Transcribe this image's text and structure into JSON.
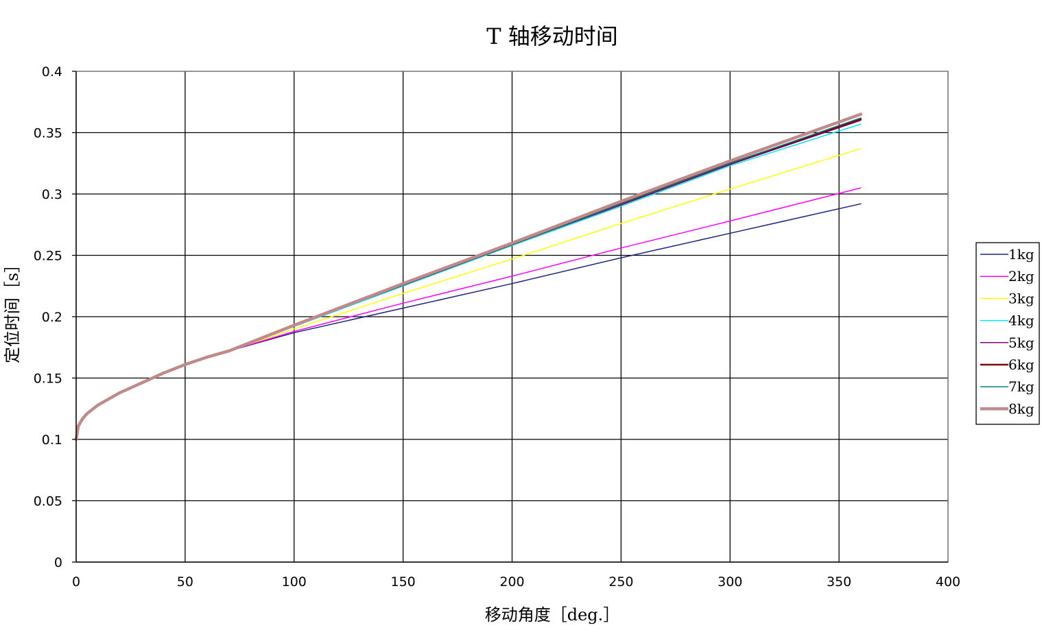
{
  "chart_data": {
    "type": "line",
    "title": "T 轴移动时间",
    "xlabel": "移动角度［deg.］",
    "ylabel": "定位时间［s］",
    "xlim": [
      0,
      400
    ],
    "ylim": [
      0,
      0.4
    ],
    "x_ticks": [
      "0",
      "50",
      "100",
      "150",
      "200",
      "250",
      "300",
      "350",
      "400"
    ],
    "y_ticks": [
      "0",
      "0.05",
      "0.1",
      "0.15",
      "0.2",
      "0.25",
      "0.3",
      "0.35",
      "0.4"
    ],
    "grid": true,
    "legend_position": "right",
    "shared_start": {
      "x": [
        0,
        1,
        3,
        5,
        10,
        15,
        20,
        30,
        40,
        50,
        60,
        70
      ],
      "y": [
        0.1,
        0.111,
        0.117,
        0.121,
        0.128,
        0.133,
        0.138,
        0.146,
        0.154,
        0.161,
        0.167,
        0.172
      ]
    },
    "series": [
      {
        "name": "1kg",
        "color": "#1a237e",
        "width": 1.5,
        "x": [
          70,
          100,
          150,
          200,
          250,
          300,
          360
        ],
        "y": [
          0.172,
          0.187,
          0.207,
          0.227,
          0.248,
          0.268,
          0.292
        ]
      },
      {
        "name": "2kg",
        "color": "#ff00ff",
        "width": 1.5,
        "x": [
          70,
          100,
          150,
          200,
          250,
          300,
          360
        ],
        "y": [
          0.172,
          0.188,
          0.211,
          0.233,
          0.256,
          0.278,
          0.305
        ]
      },
      {
        "name": "3kg",
        "color": "#ffff00",
        "width": 1.5,
        "x": [
          70,
          100,
          150,
          200,
          250,
          300,
          360
        ],
        "y": [
          0.172,
          0.19,
          0.219,
          0.247,
          0.276,
          0.304,
          0.337
        ]
      },
      {
        "name": "4kg",
        "color": "#00e5ff",
        "width": 1.5,
        "x": [
          70,
          100,
          150,
          200,
          250,
          300,
          360
        ],
        "y": [
          0.172,
          0.192,
          0.225,
          0.258,
          0.29,
          0.323,
          0.357
        ]
      },
      {
        "name": "5kg",
        "color": "#800080",
        "width": 1.5,
        "x": [
          70,
          100,
          150,
          200,
          250,
          300,
          360
        ],
        "y": [
          0.172,
          0.193,
          0.226,
          0.259,
          0.291,
          0.324,
          0.36
        ]
      },
      {
        "name": "6kg",
        "color": "#800000",
        "width": 2.5,
        "x": [
          70,
          100,
          150,
          200,
          250,
          300,
          360
        ],
        "y": [
          0.172,
          0.193,
          0.226,
          0.259,
          0.292,
          0.325,
          0.361
        ]
      },
      {
        "name": "7kg",
        "color": "#008080",
        "width": 1.5,
        "x": [
          70,
          100,
          150,
          200,
          250,
          300,
          360
        ],
        "y": [
          0.172,
          0.193,
          0.226,
          0.259,
          0.292,
          0.325,
          0.362
        ]
      },
      {
        "name": "8kg",
        "color": "#c08a8a",
        "width": 4.5,
        "x": [
          70,
          100,
          150,
          200,
          250,
          300,
          360
        ],
        "y": [
          0.172,
          0.193,
          0.227,
          0.26,
          0.294,
          0.327,
          0.365
        ]
      }
    ]
  }
}
